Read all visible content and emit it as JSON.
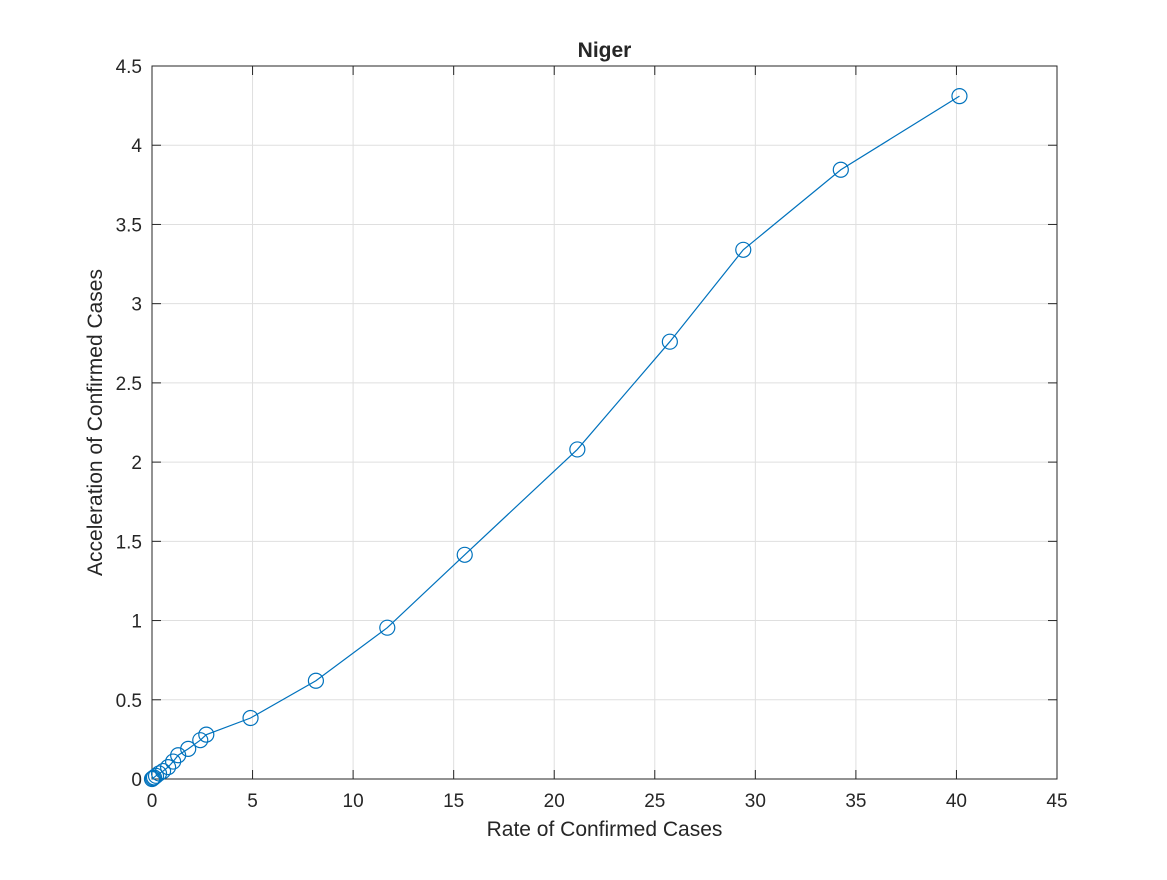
{
  "chart_data": {
    "type": "line",
    "title": "Niger",
    "xlabel": "Rate of Confirmed Cases",
    "ylabel": "Acceleration of Confirmed Cases",
    "xlim": [
      0,
      45
    ],
    "ylim": [
      0,
      4.5
    ],
    "xticks": [
      0,
      5,
      10,
      15,
      20,
      25,
      30,
      35,
      40,
      45
    ],
    "yticks": [
      0,
      0.5,
      1,
      1.5,
      2,
      2.5,
      3,
      3.5,
      4,
      4.5
    ],
    "xtick_labels": [
      "0",
      "5",
      "10",
      "15",
      "20",
      "25",
      "30",
      "35",
      "40",
      "45"
    ],
    "ytick_labels": [
      "0",
      "0.5",
      "1",
      "1.5",
      "2",
      "2.5",
      "3",
      "3.5",
      "4",
      "4.5"
    ],
    "grid": true,
    "marker": "circle-open",
    "series": [
      {
        "color": "#0072BD",
        "x": [
          0.0,
          0.05,
          0.1,
          0.2,
          0.35,
          0.55,
          0.8,
          1.05,
          1.3,
          1.8,
          2.4,
          2.7,
          4.9,
          8.15,
          11.7,
          15.55,
          21.15,
          25.75,
          29.4,
          34.25,
          40.15
        ],
        "y": [
          0.0,
          0.005,
          0.01,
          0.02,
          0.035,
          0.05,
          0.075,
          0.11,
          0.15,
          0.19,
          0.245,
          0.28,
          0.385,
          0.62,
          0.955,
          1.415,
          2.08,
          2.76,
          3.34,
          3.845,
          4.31
        ]
      }
    ]
  }
}
